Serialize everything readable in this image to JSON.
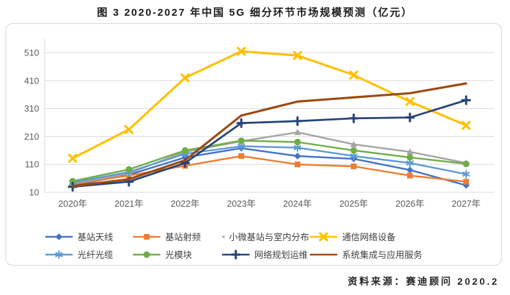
{
  "page": {
    "title": "图 3 2020-2027 年中国 5G 细分环节市场规模预测（亿元）",
    "source": "资料来源：赛迪顾问  2020.2"
  },
  "chart_data": {
    "type": "line",
    "title": "图 3 2020-2027 年中国 5G 细分环节市场规模预测（亿元）",
    "unit": "亿元",
    "categories": [
      "2020年",
      "2021年",
      "2022年",
      "2023年",
      "2024年",
      "2025年",
      "2026年",
      "2027年"
    ],
    "y_ticks": [
      10,
      110,
      210,
      310,
      410,
      510
    ],
    "ylim": [
      10,
      560
    ],
    "grid": true,
    "legend_position": "bottom",
    "grid_color": "#d9d9d9",
    "axis_label_color": "#595959",
    "series": [
      {
        "name": "基站天线",
        "color": "#4472C4",
        "marker": "diamond",
        "line_width": 2.5,
        "values": [
          35,
          73,
          135,
          168,
          140,
          130,
          90,
          35
        ]
      },
      {
        "name": "基站射频",
        "color": "#ED7D31",
        "marker": "square",
        "line_width": 2.5,
        "values": [
          40,
          70,
          105,
          140,
          110,
          103,
          70,
          48
        ]
      },
      {
        "name": "小微基站与室内分布",
        "color": "#A5A5A5",
        "marker": "triangle",
        "line_width": 2.5,
        "values": [
          42,
          78,
          155,
          193,
          225,
          182,
          155,
          115
        ]
      },
      {
        "name": "通信网络设备",
        "color": "#FFC000",
        "marker": "x",
        "line_width": 3.2,
        "values": [
          132,
          235,
          420,
          515,
          500,
          430,
          335,
          250
        ]
      },
      {
        "name": "光纤光缆",
        "color": "#5B9BD5",
        "marker": "asterisk",
        "line_width": 2.5,
        "values": [
          45,
          83,
          148,
          175,
          170,
          140,
          115,
          75
        ]
      },
      {
        "name": "光模块",
        "color": "#70AD47",
        "marker": "circle",
        "line_width": 2.5,
        "values": [
          50,
          92,
          160,
          195,
          190,
          160,
          135,
          112
        ]
      },
      {
        "name": "网络规划运维",
        "color": "#264478",
        "marker": "plus",
        "line_width": 2.8,
        "values": [
          30,
          48,
          115,
          258,
          265,
          275,
          278,
          340
        ]
      },
      {
        "name": "系统集成与应用服务",
        "color": "#9E480E",
        "marker": "none",
        "line_width": 3.2,
        "values": [
          32,
          57,
          125,
          285,
          335,
          350,
          365,
          400
        ]
      }
    ]
  }
}
